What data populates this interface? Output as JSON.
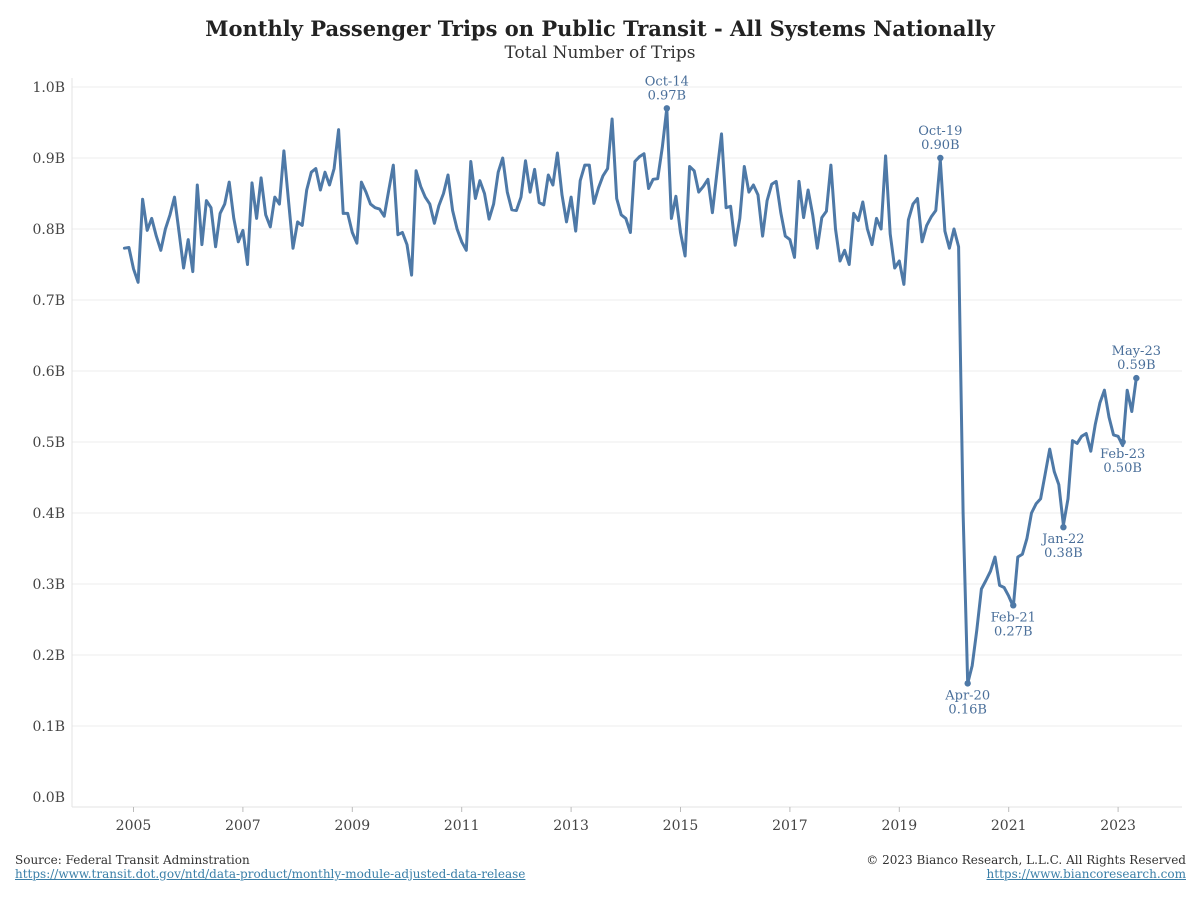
{
  "title": "Monthly Passenger Trips on Public Transit - All Systems Nationally",
  "subtitle": "Total Number of Trips",
  "colors": {
    "line": "#4e79a7",
    "annotation": "#4a6f9a",
    "grid": "#ececec",
    "link": "#3a7fa8"
  },
  "footer": {
    "source": "Source: Federal Transit Adminstration",
    "source_url": "https://www.transit.dot.gov/ntd/data-product/monthly-module-adjusted-data-release",
    "copyright": "© 2023 Bianco Research, L.L.C. All Rights Reserved",
    "site_url": "https://www.biancoresearch.com"
  },
  "chart_data": {
    "type": "line",
    "title": "Monthly Passenger Trips on Public Transit - All Systems Nationally",
    "subtitle": "Total Number of Trips",
    "xlabel": "",
    "ylabel": "",
    "unit": "B",
    "ylim": [
      0,
      1.0
    ],
    "y_ticks": [
      "0.0B",
      "0.1B",
      "0.2B",
      "0.3B",
      "0.4B",
      "0.5B",
      "0.6B",
      "0.7B",
      "0.8B",
      "0.9B",
      "1.0B"
    ],
    "x_ticks": [
      "2005",
      "2007",
      "2009",
      "2011",
      "2013",
      "2015",
      "2017",
      "2019",
      "2021",
      "2023"
    ],
    "x_start": "2004-11",
    "grid": "horizontal",
    "series": [
      {
        "values": [
          0.773,
          0.774,
          0.744,
          0.725,
          0.842,
          0.798,
          0.815,
          0.79,
          0.77,
          0.8,
          0.82,
          0.845,
          0.795,
          0.745,
          0.785,
          0.74,
          0.862,
          0.778,
          0.84,
          0.83,
          0.775,
          0.822,
          0.835,
          0.866,
          0.815,
          0.782,
          0.798,
          0.75,
          0.865,
          0.815,
          0.872,
          0.82,
          0.803,
          0.845,
          0.835,
          0.91,
          0.84,
          0.773,
          0.81,
          0.805,
          0.855,
          0.88,
          0.885,
          0.855,
          0.88,
          0.862,
          0.885,
          0.94,
          0.822,
          0.822,
          0.795,
          0.78,
          0.866,
          0.852,
          0.835,
          0.83,
          0.828,
          0.818,
          0.855,
          0.89,
          0.792,
          0.795,
          0.778,
          0.735,
          0.882,
          0.86,
          0.845,
          0.835,
          0.808,
          0.833,
          0.85,
          0.876,
          0.826,
          0.8,
          0.782,
          0.77,
          0.895,
          0.843,
          0.868,
          0.85,
          0.814,
          0.835,
          0.88,
          0.9,
          0.852,
          0.827,
          0.826,
          0.845,
          0.896,
          0.852,
          0.884,
          0.837,
          0.834,
          0.876,
          0.862,
          0.907,
          0.848,
          0.81,
          0.845,
          0.797,
          0.868,
          0.89,
          0.89,
          0.836,
          0.858,
          0.875,
          0.885,
          0.955,
          0.843,
          0.82,
          0.815,
          0.795,
          0.895,
          0.902,
          0.906,
          0.857,
          0.87,
          0.871,
          0.915,
          0.97,
          0.815,
          0.846,
          0.795,
          0.762,
          0.888,
          0.882,
          0.852,
          0.86,
          0.87,
          0.823,
          0.88,
          0.934,
          0.83,
          0.832,
          0.777,
          0.815,
          0.888,
          0.852,
          0.862,
          0.848,
          0.79,
          0.84,
          0.863,
          0.867,
          0.823,
          0.79,
          0.785,
          0.76,
          0.867,
          0.816,
          0.855,
          0.82,
          0.773,
          0.816,
          0.825,
          0.89,
          0.8,
          0.755,
          0.77,
          0.75,
          0.822,
          0.812,
          0.838,
          0.8,
          0.778,
          0.815,
          0.8,
          0.903,
          0.793,
          0.745,
          0.755,
          0.722,
          0.813,
          0.835,
          0.843,
          0.782,
          0.805,
          0.817,
          0.826,
          0.897,
          0.797,
          0.773,
          0.8,
          0.775,
          0.4,
          0.16,
          0.185,
          0.235,
          0.293,
          0.305,
          0.318,
          0.338,
          0.298,
          0.295,
          0.283,
          0.268,
          0.338,
          0.342,
          0.364,
          0.4,
          0.413,
          0.42,
          0.455,
          0.49,
          0.458,
          0.44,
          0.383,
          0.42,
          0.502,
          0.498,
          0.508,
          0.512,
          0.487,
          0.525,
          0.555,
          0.573,
          0.535,
          0.51,
          0.508,
          0.495,
          0.573,
          0.543,
          0.59
        ]
      }
    ],
    "annotations": [
      {
        "date": "Oct-14",
        "value": 0.97,
        "label_date": "Oct-14",
        "label_value": "0.97B",
        "position": "above"
      },
      {
        "date": "Oct-19",
        "value": 0.9,
        "label_date": "Oct-19",
        "label_value": "0.90B",
        "position": "above"
      },
      {
        "date": "Apr-20",
        "value": 0.16,
        "label_date": "Apr-20",
        "label_value": "0.16B",
        "position": "below"
      },
      {
        "date": "Feb-21",
        "value": 0.27,
        "label_date": "Feb-21",
        "label_value": "0.27B",
        "position": "below"
      },
      {
        "date": "Jan-22",
        "value": 0.38,
        "label_date": "Jan-22",
        "label_value": "0.38B",
        "position": "below"
      },
      {
        "date": "Feb-23",
        "value": 0.5,
        "label_date": "Feb-23",
        "label_value": "0.50B",
        "position": "below"
      },
      {
        "date": "May-23",
        "value": 0.59,
        "label_date": "May-23",
        "label_value": "0.59B",
        "position": "above"
      }
    ]
  }
}
